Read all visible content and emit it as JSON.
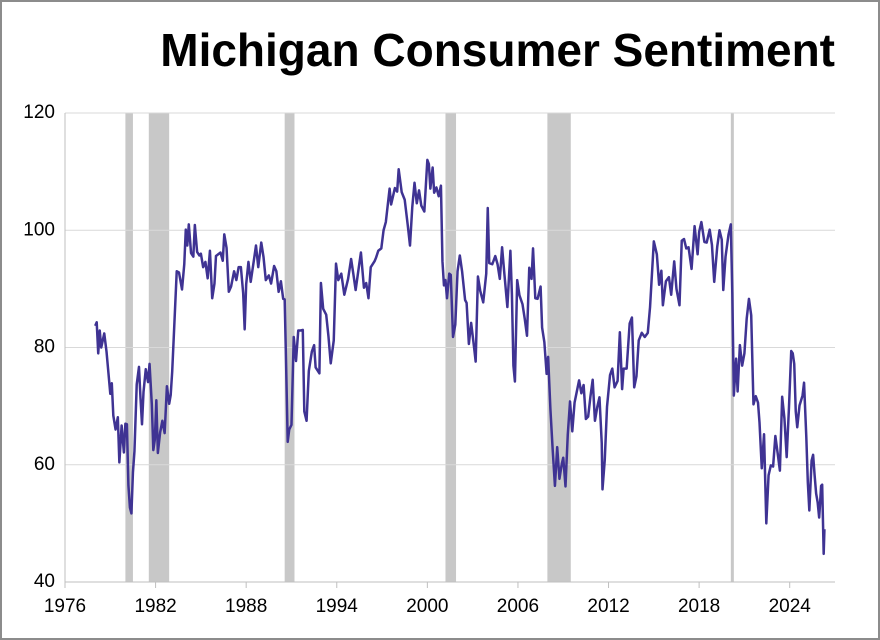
{
  "chart_data": {
    "type": "line",
    "title": "Michigan Consumer Sentiment",
    "xlim": [
      1976,
      2027
    ],
    "xticks": [
      1976,
      1982,
      1988,
      1994,
      2000,
      2006,
      2012,
      2018,
      2024
    ],
    "ylim": [
      40,
      120
    ],
    "yticks": [
      40,
      60,
      80,
      100,
      120
    ],
    "grid": true,
    "shaded_periods": [
      [
        1980.0,
        1980.5
      ],
      [
        1981.55,
        1982.9
      ],
      [
        1990.55,
        1991.2
      ],
      [
        2001.2,
        2001.9
      ],
      [
        2007.95,
        2009.5
      ],
      [
        2020.1,
        2020.3
      ]
    ],
    "shade_color": "#c8c8c8",
    "series": [
      {
        "color": "#3f3393",
        "x": [
          1978.0,
          1978.1,
          1978.2,
          1978.3,
          1978.4,
          1978.6,
          1978.75,
          1978.9,
          1979.0,
          1979.1,
          1979.2,
          1979.35,
          1979.5,
          1979.6,
          1979.75,
          1979.9,
          1980.0,
          1980.1,
          1980.2,
          1980.3,
          1980.4,
          1980.5,
          1980.6,
          1980.75,
          1980.9,
          1981.0,
          1981.1,
          1981.2,
          1981.35,
          1981.5,
          1981.6,
          1981.75,
          1981.85,
          1981.95,
          1982.05,
          1982.15,
          1982.3,
          1982.45,
          1982.6,
          1982.75,
          1982.9,
          1983.0,
          1983.1,
          1983.25,
          1983.4,
          1983.55,
          1983.75,
          1983.9,
          1984.0,
          1984.1,
          1984.2,
          1984.35,
          1984.5,
          1984.6,
          1984.75,
          1984.9,
          1985.0,
          1985.15,
          1985.3,
          1985.45,
          1985.6,
          1985.75,
          1985.9,
          1986.0,
          1986.15,
          1986.3,
          1986.45,
          1986.55,
          1986.7,
          1986.85,
          1987.0,
          1987.2,
          1987.35,
          1987.5,
          1987.65,
          1987.8,
          1987.9,
          1988.0,
          1988.15,
          1988.3,
          1988.5,
          1988.65,
          1988.8,
          1989.0,
          1989.15,
          1989.3,
          1989.5,
          1989.65,
          1989.85,
          1990.0,
          1990.15,
          1990.3,
          1990.45,
          1990.55,
          1990.65,
          1990.75,
          1990.85,
          1991.0,
          1991.15,
          1991.3,
          1991.45,
          1991.6,
          1991.75,
          1991.85,
          1992.0,
          1992.15,
          1992.35,
          1992.5,
          1992.6,
          1992.85,
          1992.95,
          1993.1,
          1993.3,
          1993.45,
          1993.6,
          1993.8,
          1993.95,
          1994.1,
          1994.3,
          1994.5,
          1994.75,
          1994.95,
          1995.1,
          1995.25,
          1995.5,
          1995.6,
          1995.8,
          1995.95,
          1996.1,
          1996.25,
          1996.5,
          1996.6,
          1996.75,
          1996.95,
          1997.1,
          1997.25,
          1997.5,
          1997.6,
          1997.85,
          1998.0,
          1998.1,
          1998.3,
          1998.5,
          1998.7,
          1998.85,
          1999.0,
          1999.15,
          1999.3,
          1999.45,
          1999.6,
          1999.8,
          2000.0,
          2000.1,
          2000.2,
          2000.35,
          2000.45,
          2000.6,
          2000.75,
          2000.9,
          2001.0,
          2001.1,
          2001.2,
          2001.3,
          2001.45,
          2001.55,
          2001.7,
          2001.85,
          2002.0,
          2002.15,
          2002.3,
          2002.5,
          2002.6,
          2002.75,
          2002.9,
          2003.1,
          2003.2,
          2003.35,
          2003.5,
          2003.7,
          2003.9,
          2004.0,
          2004.1,
          2004.3,
          2004.5,
          2004.65,
          2004.8,
          2004.95,
          2005.1,
          2005.3,
          2005.5,
          2005.6,
          2005.7,
          2005.8,
          2005.95,
          2006.1,
          2006.3,
          2006.45,
          2006.6,
          2006.75,
          2006.9,
          2007.0,
          2007.15,
          2007.3,
          2007.5,
          2007.6,
          2007.75,
          2007.9,
          2008.0,
          2008.15,
          2008.3,
          2008.45,
          2008.6,
          2008.75,
          2008.9,
          2009.0,
          2009.15,
          2009.3,
          2009.45,
          2009.6,
          2009.75,
          2009.9,
          2010.05,
          2010.2,
          2010.35,
          2010.5,
          2010.65,
          2010.8,
          2010.95,
          2011.1,
          2011.25,
          2011.4,
          2011.55,
          2011.6,
          2011.75,
          2011.9,
          2012.1,
          2012.25,
          2012.4,
          2012.6,
          2012.75,
          2012.9,
          2013.0,
          2013.2,
          2013.4,
          2013.55,
          2013.7,
          2013.85,
          2014.0,
          2014.2,
          2014.4,
          2014.6,
          2014.75,
          2014.9,
          2015.0,
          2015.2,
          2015.35,
          2015.5,
          2015.6,
          2015.8,
          2016.0,
          2016.15,
          2016.35,
          2016.5,
          2016.7,
          2016.85,
          2017.0,
          2017.15,
          2017.3,
          2017.5,
          2017.7,
          2017.9,
          2018.0,
          2018.15,
          2018.35,
          2018.5,
          2018.7,
          2018.85,
          2019.0,
          2019.2,
          2019.35,
          2019.5,
          2019.6,
          2019.75,
          2019.95,
          2020.1,
          2020.2,
          2020.3,
          2020.45,
          2020.55,
          2020.7,
          2020.85,
          2021.0,
          2021.15,
          2021.3,
          2021.45,
          2021.6,
          2021.75,
          2021.9,
          2022.0,
          2022.15,
          2022.3,
          2022.45,
          2022.6,
          2022.75,
          2022.9,
          2023.05,
          2023.2,
          2023.35,
          2023.5,
          2023.65,
          2023.8,
          2023.95,
          2024.1,
          2024.2,
          2024.3,
          2024.4,
          2024.5,
          2024.65,
          2024.85,
          2024.95,
          2025.1,
          2025.2,
          2025.3,
          2025.45,
          2025.55,
          2025.65,
          2025.75,
          2025.85,
          2025.95,
          2026.0,
          2026.08,
          2026.15,
          2026.25,
          2026.3
        ],
        "values": [
          83.7,
          84.3,
          79,
          82.9,
          80,
          82.4,
          79.3,
          75,
          72.1,
          73.9,
          68.4,
          66,
          68.1,
          60.4,
          66.7,
          62.1,
          67,
          66.9,
          56.5,
          52.7,
          51.7,
          58.7,
          62.3,
          73.7,
          76.7,
          71.4,
          66.9,
          72.4,
          76.3,
          74.1,
          77.2,
          70.3,
          62.5,
          64.3,
          71,
          62,
          65.5,
          67.5,
          65.4,
          73.4,
          70.4,
          71.9,
          75.9,
          84.4,
          93,
          92.8,
          89.9,
          94.2,
          100.1,
          97.4,
          101,
          96.1,
          95.5,
          100.9,
          96.3,
          95.7,
          96,
          93.7,
          94.6,
          91.8,
          96.5,
          88.4,
          90.9,
          95.6,
          95.9,
          96.2,
          94.8,
          99.3,
          97,
          89.5,
          90.4,
          93,
          91.5,
          93.7,
          93.7,
          89.3,
          83.1,
          90.8,
          94.6,
          91.2,
          94.7,
          97.4,
          93.7,
          97.9,
          95.4,
          91.5,
          92.3,
          90.9,
          93.9,
          93,
          89.5,
          91.3,
          88.3,
          88.2,
          76.4,
          63.9,
          66,
          66.8,
          81.8,
          77.7,
          82.9,
          82.9,
          83,
          69.1,
          67.5,
          76,
          79.3,
          80.4,
          76.6,
          75.6,
          91,
          86.6,
          85.6,
          81.9,
          77.3,
          81.2,
          94.3,
          91.5,
          92.6,
          89,
          91.7,
          95.1,
          92.5,
          89.8,
          94.4,
          96.2,
          90.2,
          91,
          88.4,
          93.7,
          94.7,
          95.3,
          96.5,
          96.9,
          100,
          101.4,
          107.1,
          104.4,
          107.2,
          106.6,
          110.4,
          106.5,
          105.2,
          100.9,
          97.4,
          103.9,
          108.1,
          104.6,
          106.8,
          104.2,
          103.2,
          112,
          111.3,
          107.1,
          110.7,
          106.4,
          107.3,
          105.8,
          107.6,
          94.7,
          90.6,
          91.5,
          88.4,
          92.6,
          92.4,
          81.8,
          83.9,
          93,
          95.7,
          93,
          88.1,
          87.6,
          80.6,
          84.2,
          79.9,
          77.6,
          92.1,
          89.7,
          87.7,
          92.6,
          103.8,
          94.4,
          94.2,
          95.6,
          94.2,
          91.7,
          97.1,
          92.6,
          86.9,
          96.5,
          89.1,
          76.9,
          74.2,
          91.5,
          88.9,
          87.4,
          84.9,
          82,
          93.6,
          91.7,
          96.9,
          88.4,
          88.3,
          90.4,
          83.4,
          80.9,
          75.5,
          78.4,
          69.5,
          62.6,
          56.4,
          63,
          57.6,
          60.1,
          61.2,
          56.3,
          65.1,
          70.8,
          65.7,
          70.6,
          72.5,
          74.4,
          72.2,
          73.6,
          67.8,
          68.2,
          71.6,
          74.5,
          67.5,
          69.8,
          71.5,
          63.7,
          55.8,
          60.8,
          69.9,
          75.3,
          76.4,
          73.2,
          74.3,
          82.6,
          72.9,
          76.4,
          76.4,
          84.1,
          85.1,
          73.2,
          75.1,
          81.2,
          82.5,
          81.8,
          82.5,
          86.9,
          93.6,
          98.1,
          95.9,
          90.7,
          93.1,
          87.2,
          91.3,
          92,
          89,
          94.7,
          90,
          87.2,
          98.2,
          98.5,
          96.9,
          97.1,
          93.4,
          100.7,
          95.9,
          99.7,
          101.4,
          98,
          97.9,
          100.1,
          97.5,
          91.2,
          97.2,
          100,
          98.4,
          89.8,
          95.5,
          99.3,
          101,
          89.1,
          71.8,
          78.1,
          72.5,
          80.4,
          76.9,
          79,
          84.9,
          88.3,
          85.5,
          70.3,
          71.7,
          70.6,
          67.2,
          59.4,
          65.2,
          50,
          58.2,
          59.9,
          59.7,
          64.9,
          62,
          59,
          71.6,
          67.9,
          61.3,
          69.7,
          79.4,
          79,
          77.2,
          69.1,
          66.4,
          70.1,
          71.8,
          74,
          64.7,
          57,
          52.2,
          60.7,
          61.7,
          58.2,
          55.1,
          53.6,
          51,
          52.9,
          56.4,
          56.6,
          44.8,
          49
        ]
      }
    ]
  }
}
